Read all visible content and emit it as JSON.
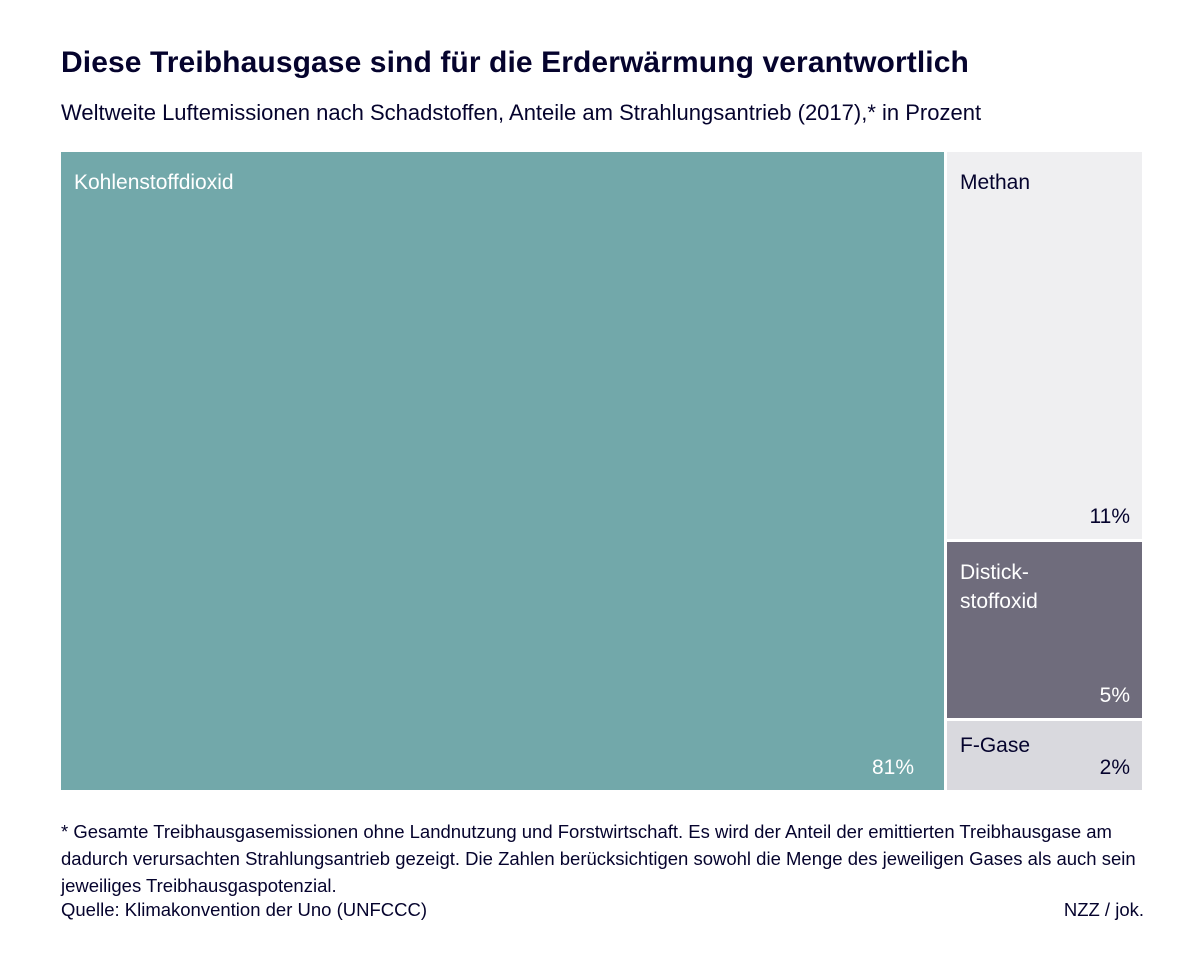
{
  "header": {
    "title": "Diese Treibhausgase sind für die Erderwärmung verantwortlich",
    "subtitle": "Weltweite Luftemissionen nach Schadstoffen, Anteile am Strahlungsantrieb (2017),* in Prozent"
  },
  "chart_data": {
    "type": "treemap",
    "title": "Diese Treibhausgase sind für die Erderwärmung verantwortlich",
    "subtitle": "Weltweite Luftemissionen nach Schadstoffen, Anteile am Strahlungsantrieb (2017),* in Prozent",
    "unit": "Prozent",
    "items": [
      {
        "name": "Kohlenstoffdioxid",
        "value": 81,
        "value_label": "81%",
        "color": "#72a8aa",
        "text_color": "#ffffff"
      },
      {
        "name": "Methan",
        "value": 11,
        "value_label": "11%",
        "color": "#efeff1",
        "text_color": "#05032d"
      },
      {
        "name": "Distick-\nstoffoxid",
        "value": 5,
        "value_label": "5%",
        "color": "#6f6c7c",
        "text_color": "#ffffff"
      },
      {
        "name": "F-Gase",
        "value": 2,
        "value_label": "2%",
        "color": "#d9d9de",
        "text_color": "#05032d"
      }
    ]
  },
  "footer": {
    "footnote": "* Gesamte Treibhausgasemissionen ohne Landnutzung und Forstwirtschaft. Es wird der Anteil der emittierten Treibhausgase am dadurch verursachten Strahlungsantrieb gezeigt. Die Zahlen berücksichtigen sowohl die Menge des jeweiligen Gases als auch sein jeweiliges Treibhausgaspotenzial.",
    "source": "Quelle: Klimakonvention der Uno (UNFCCC)",
    "credit": "NZZ / jok."
  }
}
